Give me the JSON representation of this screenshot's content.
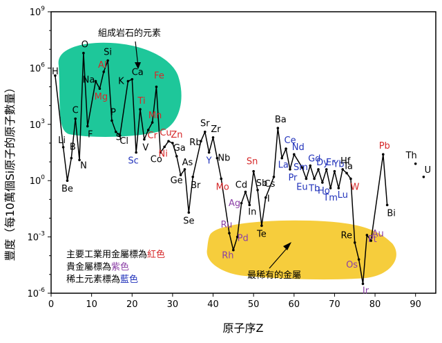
{
  "chart_data": {
    "type": "line",
    "xlabel": "原子序Z",
    "ylabel": "豐度（每10萬個Si原子的原子數量）",
    "xlim": [
      0,
      95
    ],
    "ylim_log10": [
      -6,
      9
    ],
    "y_scale": "log",
    "x_ticks": [
      0,
      10,
      20,
      30,
      40,
      50,
      60,
      70,
      80,
      90
    ],
    "y_ticks": [
      {
        "base": "10",
        "exp": "-6"
      },
      {
        "base": "10",
        "exp": "-3"
      },
      {
        "base": "10",
        "exp": "0"
      },
      {
        "base": "10",
        "exp": "3"
      },
      {
        "base": "10",
        "exp": "6"
      },
      {
        "base": "10",
        "exp": "9"
      }
    ],
    "colors": {
      "industrial": "#d62728",
      "precious": "#8b3fa6",
      "rare_earth": "#2233bb",
      "other": "#000000",
      "rock_region": "#1ec79a",
      "rarest_region": "#f6cd3c",
      "line": "#000000"
    },
    "series": [
      {
        "points": [
          {
            "z": 1,
            "sym": "H",
            "log": 5.6,
            "cat": "other"
          },
          {
            "z": 3,
            "sym": "Li",
            "log": 1.78,
            "cat": "other"
          },
          {
            "z": 4,
            "sym": "Be",
            "log": 0.0,
            "cat": "other"
          },
          {
            "z": 5,
            "sym": "B",
            "log": 1.2,
            "cat": "other"
          },
          {
            "z": 6,
            "sym": "C",
            "log": 3.3,
            "cat": "other"
          },
          {
            "z": 7,
            "sym": "N",
            "log": 1.1,
            "cat": "other"
          },
          {
            "z": 8,
            "sym": "O",
            "log": 6.8,
            "cat": "other"
          },
          {
            "z": 9,
            "sym": "F",
            "log": 2.9,
            "cat": "other"
          },
          {
            "z": 11,
            "sym": "Na",
            "log": 5.3,
            "cat": "other"
          },
          {
            "z": 12,
            "sym": "Mg",
            "log": 4.9,
            "cat": "industrial"
          },
          {
            "z": 13,
            "sym": "Al",
            "log": 5.8,
            "cat": "industrial"
          },
          {
            "z": 14,
            "sym": "Si",
            "log": 6.4,
            "cat": "other"
          },
          {
            "z": 15,
            "sym": "P",
            "log": 3.2,
            "cat": "other"
          },
          {
            "z": 16,
            "sym": "S",
            "log": 2.6,
            "cat": "other"
          },
          {
            "z": 17,
            "sym": "Cl",
            "log": 2.4,
            "cat": "other"
          },
          {
            "z": 19,
            "sym": "K",
            "log": 5.3,
            "cat": "other"
          },
          {
            "z": 20,
            "sym": "Ca",
            "log": 5.4,
            "cat": "other"
          },
          {
            "z": 21,
            "sym": "Sc",
            "log": 1.5,
            "cat": "rare_earth"
          },
          {
            "z": 22,
            "sym": "Ti",
            "log": 3.8,
            "cat": "industrial"
          },
          {
            "z": 23,
            "sym": "V",
            "log": 2.2,
            "cat": "other"
          },
          {
            "z": 24,
            "sym": "Cr",
            "log": 2.7,
            "cat": "industrial"
          },
          {
            "z": 25,
            "sym": "Mn",
            "log": 3.1,
            "cat": "industrial"
          },
          {
            "z": 26,
            "sym": "Fe",
            "log": 5.0,
            "cat": "industrial"
          },
          {
            "z": 27,
            "sym": "Co",
            "log": 1.5,
            "cat": "other"
          },
          {
            "z": 28,
            "sym": "Ni",
            "log": 1.8,
            "cat": "industrial"
          },
          {
            "z": 29,
            "sym": "Cu",
            "log": 2.1,
            "cat": "industrial"
          },
          {
            "z": 30,
            "sym": "Zn",
            "log": 2.0,
            "cat": "industrial"
          },
          {
            "z": 31,
            "sym": "Ga",
            "log": 1.3,
            "cat": "other"
          },
          {
            "z": 32,
            "sym": "Ge",
            "log": 0.3,
            "cat": "other"
          },
          {
            "z": 33,
            "sym": "As",
            "log": 0.6,
            "cat": "other"
          },
          {
            "z": 34,
            "sym": "Se",
            "log": -1.7,
            "cat": "other"
          },
          {
            "z": 35,
            "sym": "Br",
            "log": 0.2,
            "cat": "other"
          },
          {
            "z": 37,
            "sym": "Rb",
            "log": 2.1,
            "cat": "other"
          },
          {
            "z": 38,
            "sym": "Sr",
            "log": 2.6,
            "cat": "other"
          },
          {
            "z": 39,
            "sym": "Y",
            "log": 1.5,
            "cat": "rare_earth"
          },
          {
            "z": 40,
            "sym": "Zr",
            "log": 2.3,
            "cat": "other"
          },
          {
            "z": 41,
            "sym": "Nb",
            "log": 1.2,
            "cat": "other"
          },
          {
            "z": 42,
            "sym": "Mo",
            "log": 0.1,
            "cat": "industrial"
          },
          {
            "z": 44,
            "sym": "Ru",
            "log": -2.8,
            "cat": "precious"
          },
          {
            "z": 45,
            "sym": "Rh",
            "log": -3.7,
            "cat": "precious"
          },
          {
            "z": 46,
            "sym": "Pd",
            "log": -3.0,
            "cat": "precious"
          },
          {
            "z": 47,
            "sym": "Ag",
            "log": -1.2,
            "cat": "precious"
          },
          {
            "z": 48,
            "sym": "Cd",
            "log": -0.6,
            "cat": "other"
          },
          {
            "z": 49,
            "sym": "In",
            "log": -1.3,
            "cat": "other"
          },
          {
            "z": 50,
            "sym": "Sn",
            "log": 0.5,
            "cat": "industrial"
          },
          {
            "z": 51,
            "sym": "Sb",
            "log": -0.5,
            "cat": "other"
          },
          {
            "z": 52,
            "sym": "Te",
            "log": -2.4,
            "cat": "other"
          },
          {
            "z": 53,
            "sym": "I",
            "log": -0.9,
            "cat": "other"
          },
          {
            "z": 55,
            "sym": "Cs",
            "log": 0.2,
            "cat": "other"
          },
          {
            "z": 56,
            "sym": "Ba",
            "log": 2.8,
            "cat": "other"
          },
          {
            "z": 57,
            "sym": "La",
            "log": 1.2,
            "cat": "rare_earth"
          },
          {
            "z": 58,
            "sym": "Ce",
            "log": 1.7,
            "cat": "rare_earth"
          },
          {
            "z": 59,
            "sym": "Pr",
            "log": 0.6,
            "cat": "rare_earth"
          },
          {
            "z": 60,
            "sym": "Nd",
            "log": 1.4,
            "cat": "rare_earth"
          },
          {
            "z": 62,
            "sym": "Sm",
            "log": 0.7,
            "cat": "rare_earth"
          },
          {
            "z": 63,
            "sym": "Eu",
            "log": 0.1,
            "cat": "rare_earth"
          },
          {
            "z": 64,
            "sym": "Gd",
            "log": 0.8,
            "cat": "rare_earth"
          },
          {
            "z": 65,
            "sym": "Tb",
            "log": 0.1,
            "cat": "rare_earth"
          },
          {
            "z": 66,
            "sym": "Dy",
            "log": 0.6,
            "cat": "rare_earth"
          },
          {
            "z": 67,
            "sym": "Ho",
            "log": -0.1,
            "cat": "rare_earth"
          },
          {
            "z": 68,
            "sym": "Er",
            "log": 0.6,
            "cat": "rare_earth"
          },
          {
            "z": 69,
            "sym": "Tm",
            "log": -0.4,
            "cat": "rare_earth"
          },
          {
            "z": 70,
            "sym": "Yb",
            "log": 0.5,
            "cat": "rare_earth"
          },
          {
            "z": 71,
            "sym": "Lu",
            "log": -0.4,
            "cat": "rare_earth"
          },
          {
            "z": 72,
            "sym": "Hf",
            "log": 0.6,
            "cat": "other"
          },
          {
            "z": 73,
            "sym": "Ta",
            "log": 0.4,
            "cat": "other"
          },
          {
            "z": 74,
            "sym": "W",
            "log": 0.1,
            "cat": "industrial"
          },
          {
            "z": 75,
            "sym": "Re",
            "log": -3.3,
            "cat": "other"
          },
          {
            "z": 76,
            "sym": "Os",
            "log": -4.2,
            "cat": "precious"
          },
          {
            "z": 77,
            "sym": "Ir",
            "log": -5.5,
            "cat": "precious"
          },
          {
            "z": 78,
            "sym": "Pt",
            "log": -2.9,
            "cat": "precious"
          },
          {
            "z": 79,
            "sym": "Au",
            "log": -3.2,
            "cat": "precious"
          },
          {
            "z": 82,
            "sym": "Pb",
            "log": 1.4,
            "cat": "industrial"
          },
          {
            "z": 83,
            "sym": "Bi",
            "log": -1.3,
            "cat": "other"
          }
        ]
      },
      {
        "points": [
          {
            "z": 90,
            "sym": "Th",
            "log": 0.9,
            "cat": "other"
          },
          {
            "z": 92,
            "sym": "U",
            "log": 0.2,
            "cat": "other"
          }
        ]
      }
    ],
    "annotations": {
      "rock_region_label": "組成岩石的元素",
      "rarest_region_label": "最稀有的金屬",
      "legend_lines": [
        {
          "prefix": "主要工業用金屬標為",
          "highlight": "紅色",
          "cat": "industrial"
        },
        {
          "prefix": "貴金屬標為",
          "highlight": "紫色",
          "cat": "precious"
        },
        {
          "prefix": "稀土元素標為",
          "highlight": "藍色",
          "cat": "rare_earth"
        }
      ]
    }
  }
}
